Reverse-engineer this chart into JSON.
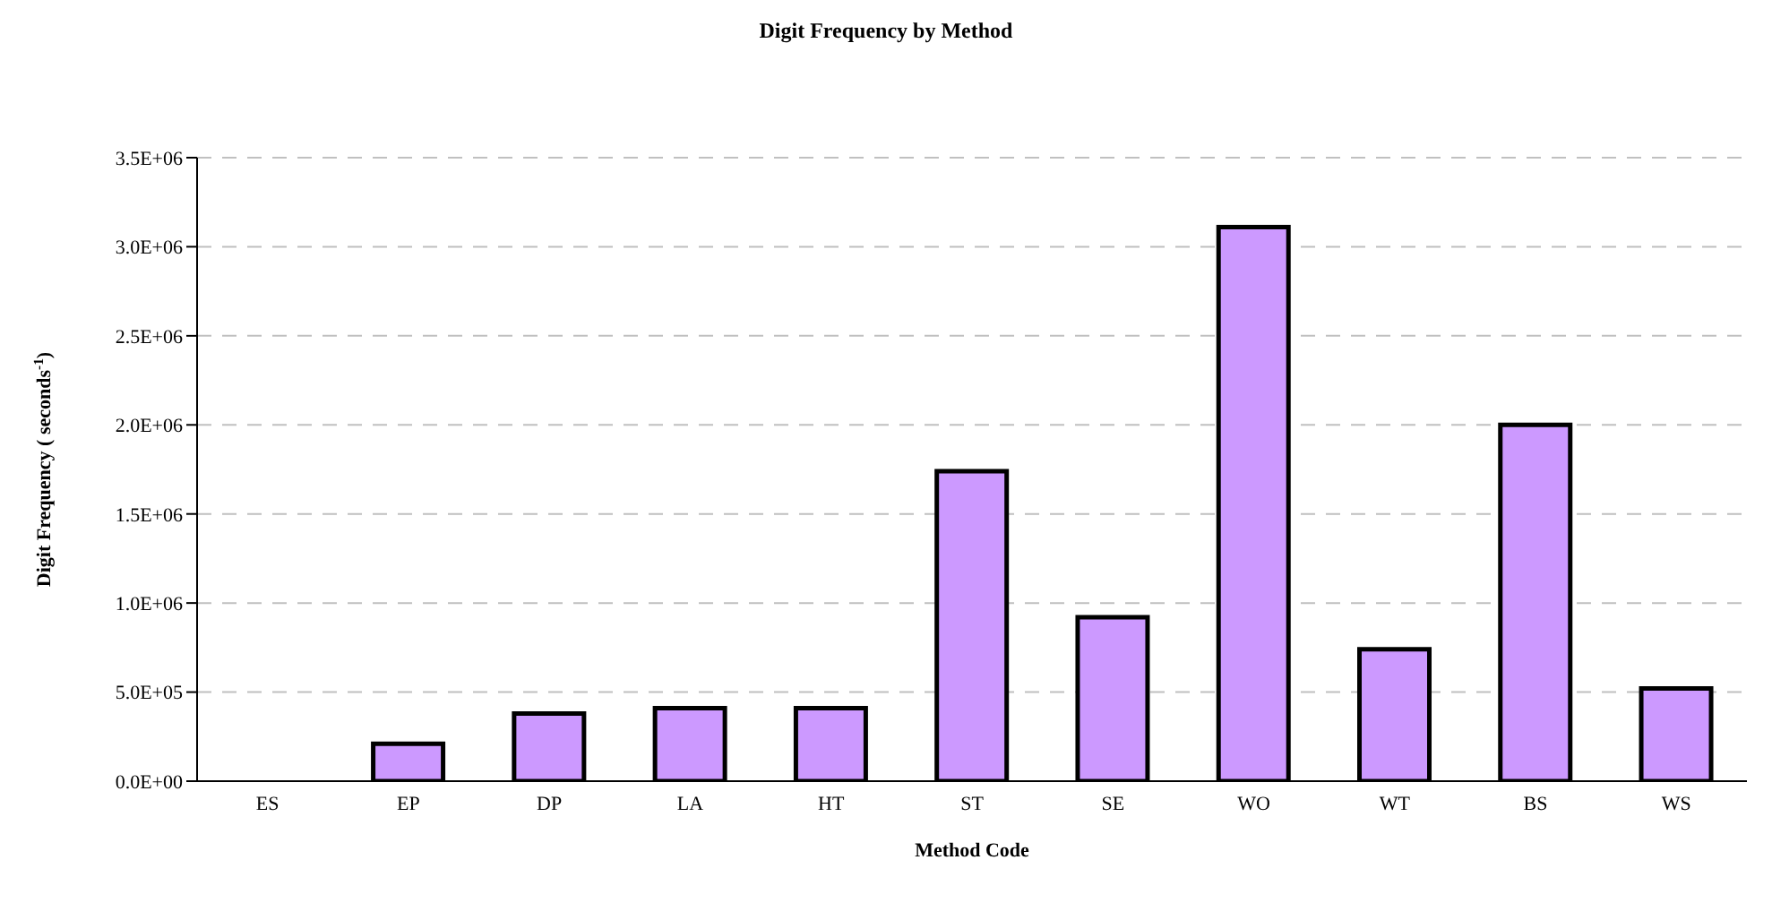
{
  "chart_data": {
    "type": "bar",
    "title": "Digit Frequency by Method",
    "xlabel": "Method Code",
    "ylabel": "Digit Frequency ( seconds$^{-1}$)",
    "categories": [
      "ES",
      "EP",
      "DP",
      "LA",
      "HT",
      "ST",
      "SE",
      "WO",
      "WT",
      "BS",
      "WS"
    ],
    "values": [
      0,
      210000,
      380000,
      410000,
      410000,
      1740000,
      920000,
      3110000,
      740000,
      2000000,
      520000
    ],
    "color": "#cc99ff",
    "ylim": [
      0,
      3500000
    ],
    "yticks": [
      {
        "value": 0,
        "label": "0.0E+00"
      },
      {
        "value": 500000,
        "label": "5.0E+05"
      },
      {
        "value": 1000000,
        "label": "1.0E+06"
      },
      {
        "value": 1500000,
        "label": "1.5E+06"
      },
      {
        "value": 2000000,
        "label": "2.0E+06"
      },
      {
        "value": 2500000,
        "label": "2.5E+06"
      },
      {
        "value": 3000000,
        "label": "3.0E+06"
      },
      {
        "value": 3500000,
        "label": "3.5E+06"
      }
    ],
    "grid": "y",
    "legend": false
  }
}
